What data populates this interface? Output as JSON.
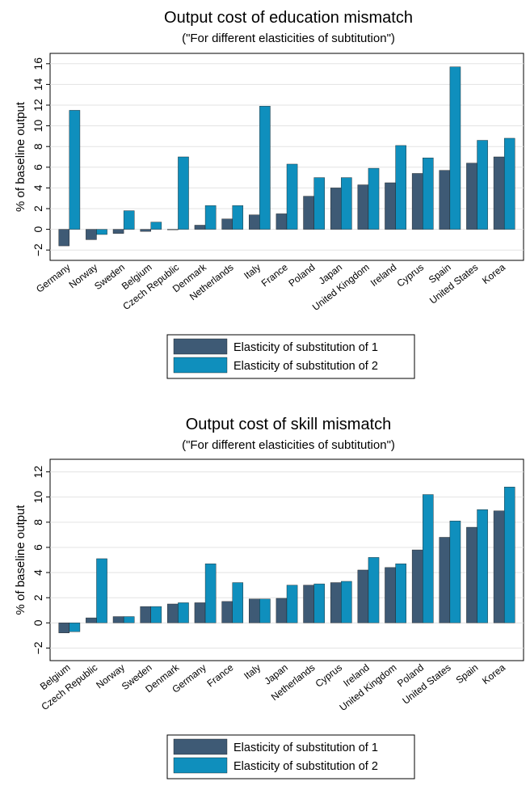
{
  "chart_data": [
    {
      "type": "bar",
      "title": "Output cost of education mismatch",
      "subtitle": "(\"For different elasticities of subtitution\")",
      "ylabel": "% of baseline output",
      "xlabel": "",
      "ylim": [
        -3,
        17
      ],
      "yticks": [
        -2,
        0,
        2,
        4,
        6,
        8,
        10,
        12,
        14,
        16
      ],
      "ytick_labels": [
        "−2",
        "0",
        "2",
        "4",
        "6",
        "8",
        "10",
        "12",
        "14",
        "16"
      ],
      "grid": true,
      "legend_position": "bottom",
      "categories": [
        "Germany",
        "Norway",
        "Sweden",
        "Belgium",
        "Czech Republic",
        "Denmark",
        "Netherlands",
        "Italy",
        "France",
        "Poland",
        "Japan",
        "United Kingdom",
        "Ireland",
        "Cyprus",
        "Spain",
        "United States",
        "Korea"
      ],
      "series": [
        {
          "name": "Elasticity of substitution of 1",
          "color": "#3e5a75",
          "values": [
            -1.6,
            -1.0,
            -0.4,
            -0.2,
            0.0,
            0.4,
            1.0,
            1.4,
            1.5,
            3.2,
            4.0,
            4.3,
            4.5,
            5.4,
            5.7,
            6.4,
            7.0
          ]
        },
        {
          "name": "Elasticity of substitution of 2",
          "color": "#0f8fbd",
          "values": [
            11.5,
            -0.5,
            1.8,
            0.7,
            7.0,
            2.3,
            2.3,
            11.9,
            6.3,
            5.0,
            5.0,
            5.9,
            8.1,
            6.9,
            15.7,
            8.6,
            8.8
          ]
        }
      ]
    },
    {
      "type": "bar",
      "title": "Output cost of skill mismatch",
      "subtitle": "(\"For different elasticities of subtitution\")",
      "ylabel": "% of baseline output",
      "xlabel": "",
      "ylim": [
        -3,
        13
      ],
      "yticks": [
        -2,
        0,
        2,
        4,
        6,
        8,
        10,
        12
      ],
      "ytick_labels": [
        "−2",
        "0",
        "2",
        "4",
        "6",
        "8",
        "10",
        "12"
      ],
      "grid": true,
      "legend_position": "bottom",
      "categories": [
        "Belgium",
        "Czech Republic",
        "Norway",
        "Sweden",
        "Denmark",
        "Germany",
        "France",
        "Italy",
        "Japan",
        "Netherlands",
        "Cyprus",
        "Ireland",
        "United Kingdom",
        "Poland",
        "United States",
        "Spain",
        "Korea"
      ],
      "series": [
        {
          "name": "Elasticity of substitution of 1",
          "color": "#3e5a75",
          "values": [
            -0.8,
            0.4,
            0.5,
            1.3,
            1.5,
            1.6,
            1.7,
            1.9,
            1.95,
            3.0,
            3.2,
            4.2,
            4.4,
            5.8,
            6.8,
            7.6,
            8.9
          ]
        },
        {
          "name": "Elasticity of substitution of 2",
          "color": "#0f8fbd",
          "values": [
            -0.7,
            5.1,
            0.5,
            1.3,
            1.6,
            4.7,
            3.2,
            1.9,
            3.0,
            3.1,
            3.3,
            5.2,
            4.7,
            10.2,
            8.1,
            9.0,
            10.8
          ]
        }
      ]
    }
  ]
}
